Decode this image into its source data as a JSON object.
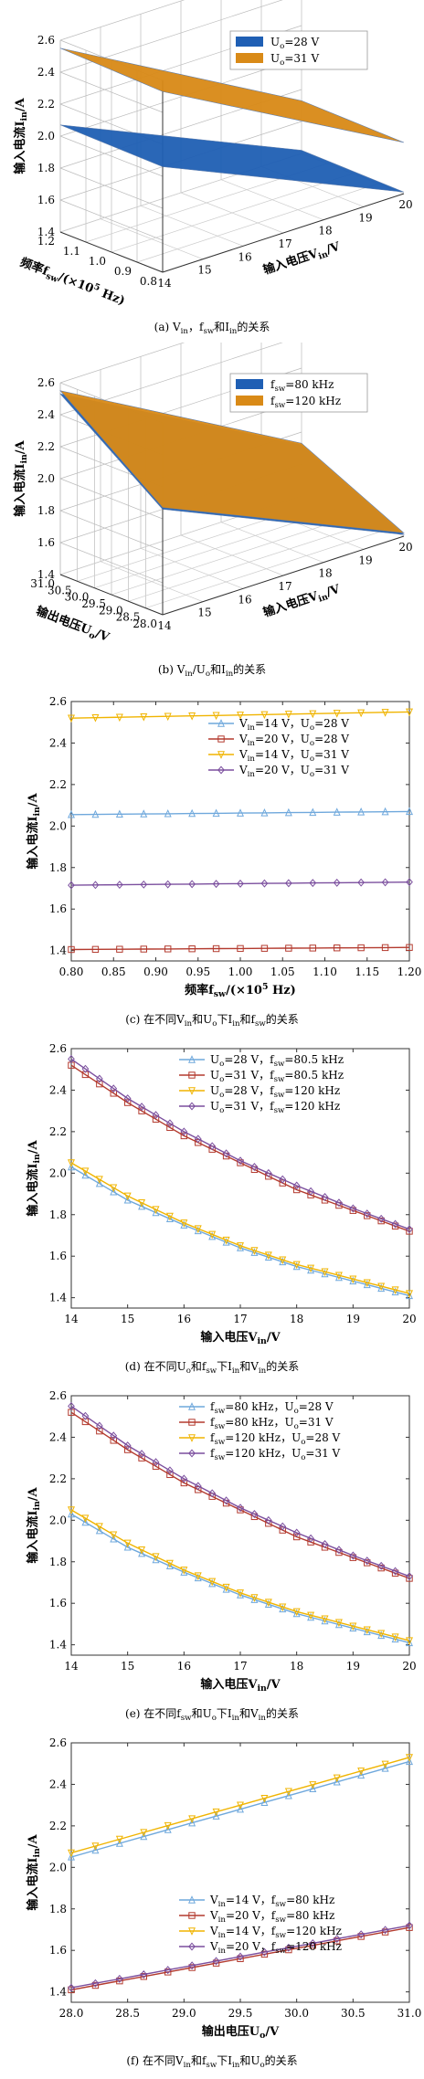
{
  "chart_data": [
    {
      "type": "surface",
      "caption": "(a) V_in，f_sw和I_in的关系",
      "zlabel": "输入电流I_in/A",
      "xlabel": "输入电压V_in/V",
      "ylabel": "频率f_sw/(×10^5 Hz)",
      "x_ticks": [
        "14",
        "15",
        "16",
        "17",
        "18",
        "19",
        "20"
      ],
      "y_ticks": [
        "0.8",
        "0.9",
        "1.0",
        "1.1",
        "1.2"
      ],
      "z_ticks": [
        "1.4",
        "1.6",
        "1.8",
        "2.0",
        "2.2",
        "2.4",
        "2.6"
      ],
      "zlim": [
        1.4,
        2.6
      ],
      "series": [
        {
          "name": "U_o=28 V",
          "color": "#1f5fb4",
          "corners": {
            "x14_y08": 2.06,
            "x14_y12": 2.07,
            "x20_y08": 1.41,
            "x20_y12": 1.42
          }
        },
        {
          "name": "U_o=31 V",
          "color": "#d98a17",
          "corners": {
            "x14_y08": 2.53,
            "x14_y12": 2.55,
            "x20_y08": 1.72,
            "x20_y12": 1.73
          }
        }
      ]
    },
    {
      "type": "surface",
      "caption": "(b) V_in/U_o和I_in的关系",
      "zlabel": "输入电流I_in/A",
      "xlabel": "输入电压V_in/V",
      "ylabel": "输出电压U_o/V",
      "x_ticks": [
        "14",
        "15",
        "16",
        "17",
        "18",
        "19",
        "20"
      ],
      "y_ticks": [
        "28.0",
        "28.5",
        "29.0",
        "29.5",
        "30.0",
        "30.5",
        "31.0"
      ],
      "z_ticks": [
        "1.4",
        "1.6",
        "1.8",
        "2.0",
        "2.2",
        "2.4",
        "2.6"
      ],
      "zlim": [
        1.4,
        2.6
      ],
      "series": [
        {
          "name": "f_sw=80 kHz",
          "color": "#1f5fb4",
          "corners": {
            "x14_y28": 2.06,
            "x14_y31": 2.53,
            "x20_y28": 1.41,
            "x20_y31": 1.72
          }
        },
        {
          "name": "f_sw=120 kHz",
          "color": "#d98a17",
          "corners": {
            "x14_y28": 2.07,
            "x14_y31": 2.55,
            "x20_y28": 1.42,
            "x20_y31": 1.73
          }
        }
      ]
    },
    {
      "type": "line",
      "caption": "(c) 在不同V_in和U_o下I_in和f_sw的关系",
      "xlabel": "频率f_sw/(×10^5 Hz)",
      "ylabel": "输入电流I_in/A",
      "xlim": [
        0.8,
        1.2
      ],
      "ylim": [
        1.35,
        2.6
      ],
      "x_ticks": [
        "0.80",
        "0.85",
        "0.90",
        "0.95",
        "1.00",
        "1.05",
        "1.10",
        "1.15",
        "1.20"
      ],
      "y_ticks": [
        "1.4",
        "1.6",
        "1.8",
        "2.0",
        "2.2",
        "2.4",
        "2.6"
      ],
      "x": [
        0.8,
        1.2
      ],
      "series": [
        {
          "name": "V_in=14 V，U_o=28 V",
          "color": "#6fa8dc",
          "marker": "triangle",
          "values": [
            2.055,
            2.07
          ]
        },
        {
          "name": "V_in=20 V，U_o=28 V",
          "color": "#b33a2e",
          "marker": "square",
          "values": [
            1.405,
            1.415
          ]
        },
        {
          "name": "V_in=14 V，U_o=31 V",
          "color": "#f0b400",
          "marker": "triangle-down",
          "values": [
            2.52,
            2.55
          ]
        },
        {
          "name": "V_in=20 V，U_o=31 V",
          "color": "#7b4f9e",
          "marker": "diamond",
          "values": [
            1.715,
            1.73
          ]
        }
      ]
    },
    {
      "type": "line",
      "caption": "(d) 在不同U_o和f_sw下I_in和V_in的关系",
      "xlabel": "输入电压V_in/V",
      "ylabel": "输入电流I_in/A",
      "xlim": [
        14,
        20
      ],
      "ylim": [
        1.35,
        2.6
      ],
      "x_ticks": [
        "14",
        "15",
        "16",
        "17",
        "18",
        "19",
        "20"
      ],
      "y_ticks": [
        "1.4",
        "1.6",
        "1.8",
        "2.0",
        "2.2",
        "2.4",
        "2.6"
      ],
      "x": [
        14,
        15,
        16,
        17,
        18,
        19,
        20
      ],
      "series": [
        {
          "name": "U_o=28 V，f_sw=80.5 kHz",
          "color": "#6fa8dc",
          "marker": "triangle",
          "values": [
            2.03,
            1.87,
            1.75,
            1.64,
            1.55,
            1.48,
            1.41
          ]
        },
        {
          "name": "U_o=31 V，f_sw=80.5 kHz",
          "color": "#b33a2e",
          "marker": "square",
          "values": [
            2.52,
            2.34,
            2.18,
            2.05,
            1.92,
            1.82,
            1.72
          ]
        },
        {
          "name": "U_o=28 V，f_sw=120 kHz",
          "color": "#f0b400",
          "marker": "triangle-down",
          "values": [
            2.05,
            1.89,
            1.76,
            1.65,
            1.56,
            1.49,
            1.42
          ]
        },
        {
          "name": "U_o=31 V，f_sw=120 kHz",
          "color": "#7b4f9e",
          "marker": "diamond",
          "values": [
            2.55,
            2.36,
            2.2,
            2.06,
            1.94,
            1.83,
            1.73
          ]
        }
      ]
    },
    {
      "type": "line",
      "caption": "(e) 在不同f_sw和U_o下I_in和V_in的关系",
      "xlabel": "输入电压V_in/V",
      "ylabel": "输入电流I_in/A",
      "xlim": [
        14,
        20
      ],
      "ylim": [
        1.35,
        2.6
      ],
      "x_ticks": [
        "14",
        "15",
        "16",
        "17",
        "18",
        "19",
        "20"
      ],
      "y_ticks": [
        "1.4",
        "1.6",
        "1.8",
        "2.0",
        "2.2",
        "2.4",
        "2.6"
      ],
      "x": [
        14,
        15,
        16,
        17,
        18,
        19,
        20
      ],
      "series": [
        {
          "name": "f_sw=80 kHz，U_o=28 V",
          "color": "#6fa8dc",
          "marker": "triangle",
          "values": [
            2.03,
            1.87,
            1.75,
            1.64,
            1.55,
            1.48,
            1.41
          ]
        },
        {
          "name": "f_sw=80 kHz，U_o=31 V",
          "color": "#b33a2e",
          "marker": "square",
          "values": [
            2.52,
            2.34,
            2.18,
            2.05,
            1.92,
            1.82,
            1.72
          ]
        },
        {
          "name": "f_sw=120 kHz，U_o=28 V",
          "color": "#f0b400",
          "marker": "triangle-down",
          "values": [
            2.05,
            1.89,
            1.76,
            1.65,
            1.56,
            1.49,
            1.42
          ]
        },
        {
          "name": "f_sw=120 kHz，U_o=31 V",
          "color": "#7b4f9e",
          "marker": "diamond",
          "values": [
            2.55,
            2.36,
            2.2,
            2.06,
            1.94,
            1.83,
            1.73
          ]
        }
      ]
    },
    {
      "type": "line",
      "caption": "(f) 在不同V_in和f_sw下I_in和U_o的关系",
      "xlabel": "输出电压U_o/V",
      "ylabel": "输入电流I_in/A",
      "xlim": [
        28,
        31
      ],
      "ylim": [
        1.35,
        2.6
      ],
      "x_ticks": [
        "28.0",
        "28.5",
        "29.0",
        "29.5",
        "30.0",
        "30.5",
        "31.0"
      ],
      "y_ticks": [
        "1.4",
        "1.6",
        "1.8",
        "2.0",
        "2.2",
        "2.4",
        "2.6"
      ],
      "x": [
        28,
        31
      ],
      "series": [
        {
          "name": "V_in=14 V，f_sw=80 kHz",
          "color": "#6fa8dc",
          "marker": "triangle",
          "values": [
            2.05,
            2.51
          ]
        },
        {
          "name": "V_in=20 V，f_sw=80 kHz",
          "color": "#b33a2e",
          "marker": "square",
          "values": [
            1.41,
            1.71
          ]
        },
        {
          "name": "V_in=14 V，f_sw=120 kHz",
          "color": "#f0b400",
          "marker": "triangle-down",
          "values": [
            2.07,
            2.53
          ]
        },
        {
          "name": "V_in=20 V，f_sw=120 kHz",
          "color": "#7b4f9e",
          "marker": "diamond",
          "values": [
            1.42,
            1.72
          ]
        }
      ]
    }
  ]
}
